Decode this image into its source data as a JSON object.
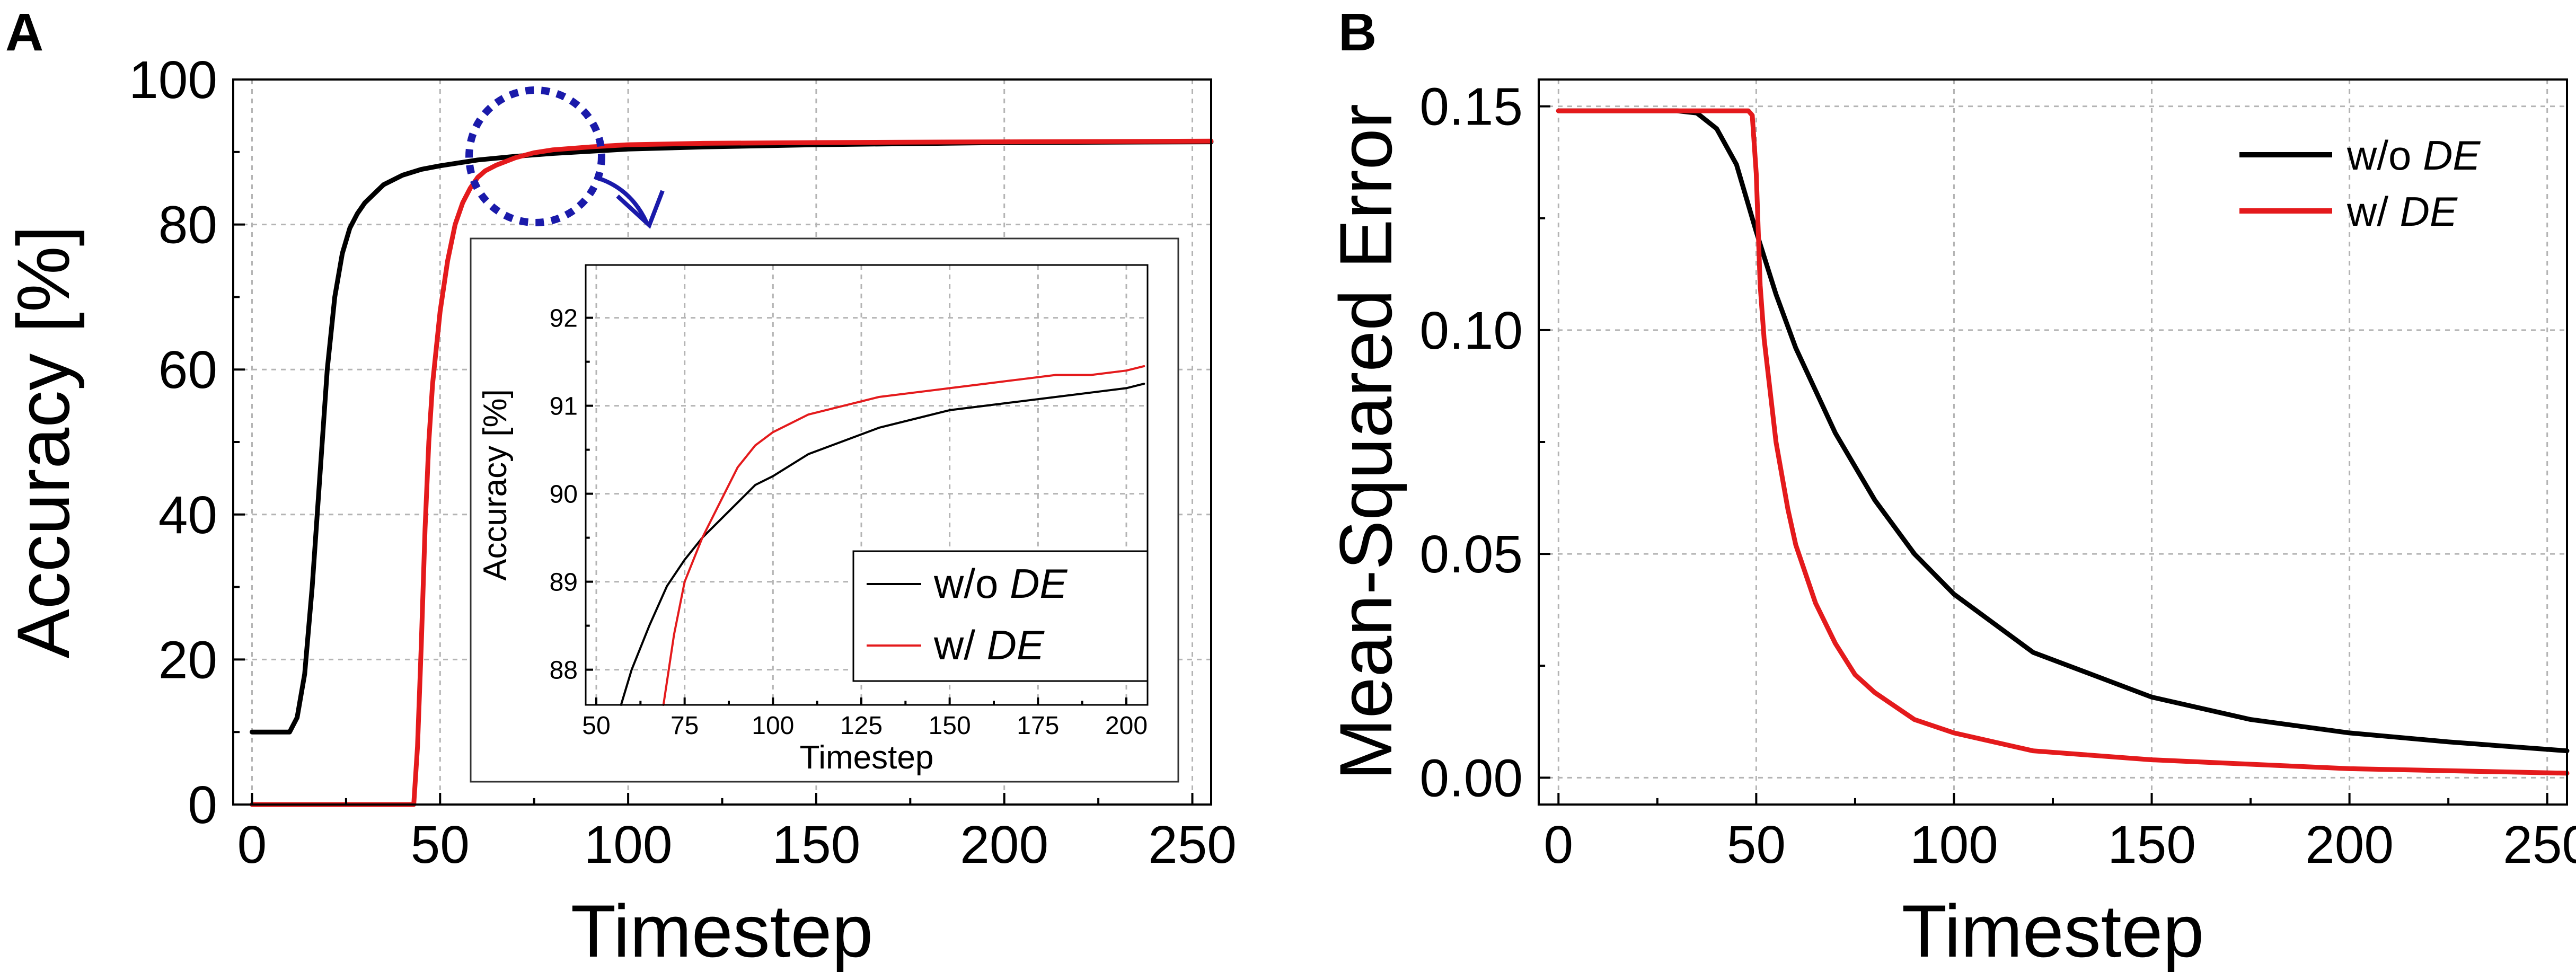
{
  "figure": {
    "panels": [
      {
        "id": "A",
        "label": "A"
      },
      {
        "id": "B",
        "label": "B"
      }
    ]
  },
  "colors": {
    "without_de": "#000000",
    "with_de": "#e41a1c",
    "annotation": "#1a1aaa",
    "grid": "#b4b4b4"
  },
  "chart_data": [
    {
      "id": "A",
      "type": "line",
      "xlabel": "Timestep",
      "ylabel": "Accuracy [%]",
      "xlim": [
        -5,
        255
      ],
      "ylim": [
        0,
        100
      ],
      "xticks": [
        0,
        50,
        100,
        150,
        200,
        250
      ],
      "yticks": [
        0,
        20,
        40,
        60,
        80,
        100
      ],
      "grid": true,
      "series": [
        {
          "name": "w/o DE",
          "color": "#000000",
          "x": [
            0,
            5,
            10,
            12,
            14,
            16,
            18,
            20,
            22,
            24,
            26,
            28,
            30,
            35,
            40,
            45,
            50,
            60,
            70,
            80,
            90,
            100,
            120,
            150,
            200,
            255
          ],
          "y": [
            10,
            10,
            10,
            12,
            18,
            30,
            45,
            60,
            70,
            76,
            79.5,
            81.5,
            83,
            85.5,
            86.8,
            87.6,
            88.1,
            88.9,
            89.4,
            89.8,
            90.1,
            90.4,
            90.7,
            91.0,
            91.3,
            91.4
          ]
        },
        {
          "name": "w/ DE",
          "color": "#e41a1c",
          "x": [
            0,
            42,
            43,
            44,
            45,
            46,
            47,
            48,
            50,
            52,
            54,
            56,
            58,
            60,
            62,
            65,
            70,
            75,
            80,
            90,
            100,
            120,
            150,
            200,
            255
          ],
          "y": [
            0,
            0,
            0,
            8,
            22,
            38,
            50,
            58,
            68,
            75,
            80,
            83,
            85,
            86.5,
            87.4,
            88.2,
            89.2,
            89.9,
            90.3,
            90.7,
            91.0,
            91.2,
            91.3,
            91.4,
            91.5
          ]
        }
      ],
      "annotation": "dotted circle around timesteps 60–90 with arrow pointing to inset",
      "inset": {
        "type": "line",
        "xlabel": "Timestep",
        "ylabel": "Accuracy [%]",
        "xlim": [
          47,
          206
        ],
        "ylim": [
          87.6,
          92.6
        ],
        "xticks": [
          50,
          75,
          100,
          125,
          150,
          175,
          200
        ],
        "yticks": [
          88,
          89,
          90,
          91,
          92
        ],
        "grid": true,
        "legend": "bottom-right",
        "series": [
          {
            "name": "w/o DE",
            "color": "#000000",
            "x": [
              57,
              60,
              65,
              70,
              75,
              80,
              85,
              90,
              95,
              100,
              110,
              120,
              130,
              140,
              150,
              160,
              170,
              180,
              190,
              200,
              205
            ],
            "y": [
              87.6,
              88.0,
              88.5,
              88.95,
              89.25,
              89.5,
              89.7,
              89.9,
              90.1,
              90.2,
              90.45,
              90.6,
              90.75,
              90.85,
              90.95,
              91.0,
              91.05,
              91.1,
              91.15,
              91.2,
              91.25
            ]
          },
          {
            "name": "w/ DE",
            "color": "#e41a1c",
            "x": [
              69,
              72,
              75,
              78,
              80,
              85,
              90,
              95,
              100,
              105,
              110,
              120,
              130,
              140,
              150,
              160,
              170,
              180,
              190,
              200,
              205
            ],
            "y": [
              87.6,
              88.4,
              89.0,
              89.3,
              89.5,
              89.9,
              90.3,
              90.55,
              90.7,
              90.8,
              90.9,
              91.0,
              91.1,
              91.15,
              91.2,
              91.25,
              91.3,
              91.35,
              91.35,
              91.4,
              91.45
            ]
          }
        ]
      }
    },
    {
      "id": "B",
      "type": "line",
      "xlabel": "Timestep",
      "ylabel": "Mean-Squared Error",
      "xlim": [
        -5,
        255
      ],
      "ylim": [
        -0.006,
        0.156
      ],
      "xticks": [
        0,
        50,
        100,
        150,
        200,
        250
      ],
      "yticks": [
        0.0,
        0.05,
        0.1,
        0.15
      ],
      "ytick_labels": [
        "0.00",
        "0.05",
        "0.10",
        "0.15"
      ],
      "grid": true,
      "legend": "top-right",
      "series": [
        {
          "name": "w/o DE",
          "color": "#000000",
          "x": [
            0,
            30,
            35,
            40,
            45,
            50,
            55,
            60,
            70,
            80,
            90,
            100,
            120,
            150,
            175,
            200,
            225,
            255
          ],
          "y": [
            0.149,
            0.149,
            0.1485,
            0.145,
            0.137,
            0.122,
            0.108,
            0.096,
            0.077,
            0.062,
            0.05,
            0.041,
            0.028,
            0.018,
            0.013,
            0.01,
            0.008,
            0.006
          ]
        },
        {
          "name": "w/ DE",
          "color": "#e41a1c",
          "x": [
            0,
            48,
            49,
            50,
            51,
            52,
            55,
            58,
            60,
            65,
            70,
            75,
            80,
            90,
            100,
            120,
            150,
            200,
            255
          ],
          "y": [
            0.149,
            0.149,
            0.148,
            0.135,
            0.11,
            0.098,
            0.075,
            0.06,
            0.052,
            0.039,
            0.03,
            0.023,
            0.019,
            0.013,
            0.01,
            0.006,
            0.004,
            0.002,
            0.001
          ]
        }
      ]
    }
  ]
}
